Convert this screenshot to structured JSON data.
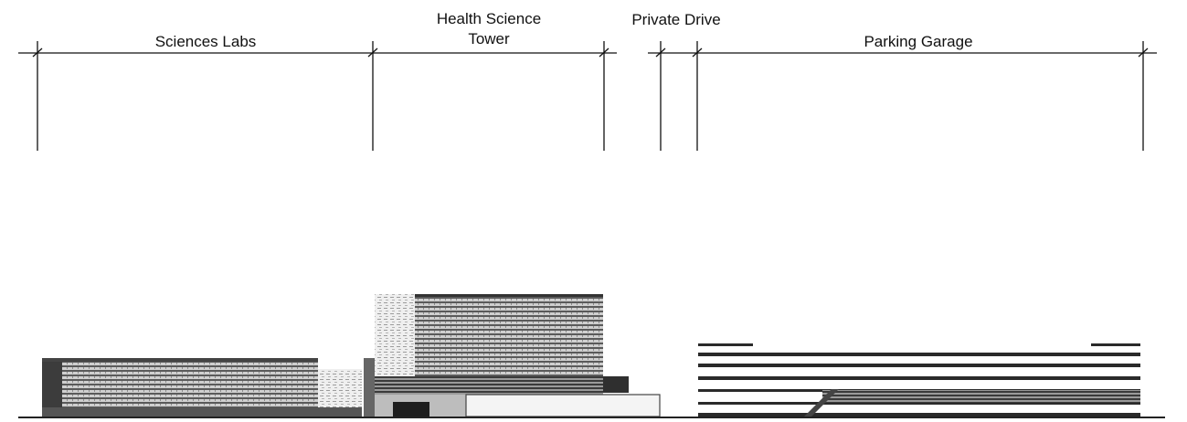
{
  "sections": {
    "sciences_labs": "Sciences Labs",
    "health_science_tower": {
      "line1": "Health Science",
      "line2": "Tower"
    },
    "private_drive": "Private Drive",
    "parking_garage": "Parking Garage"
  }
}
